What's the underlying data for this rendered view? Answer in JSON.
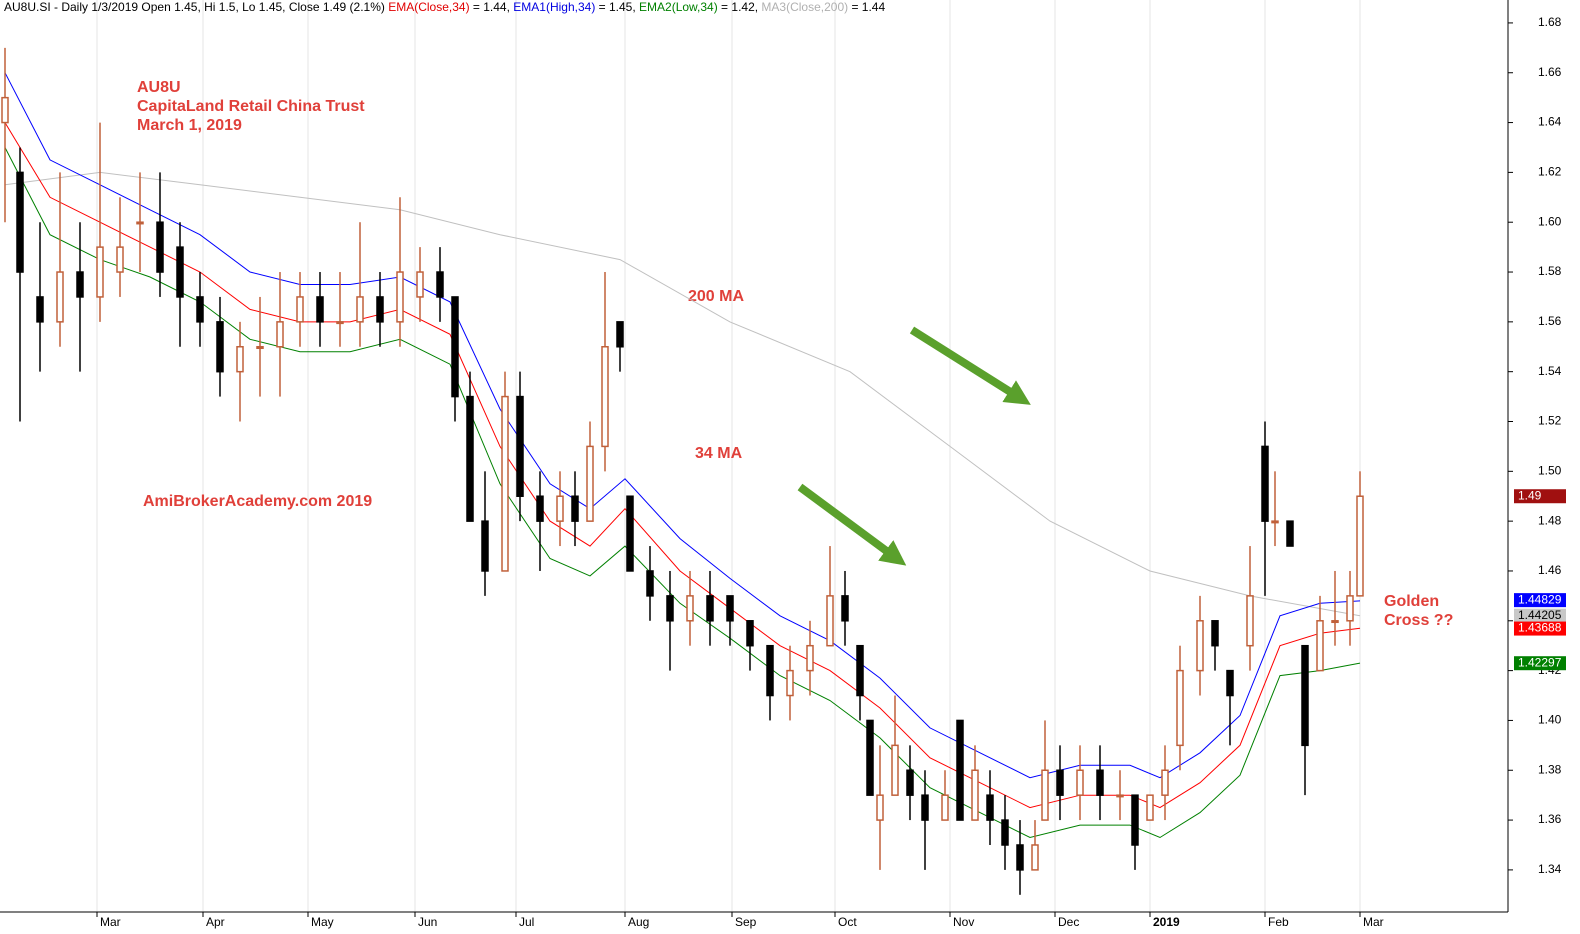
{
  "chart_data": {
    "type": "candlestick",
    "header": [
      {
        "text": "AU8U.SI - Daily 1/3/2019 Open 1.45, Hi 1.5, Lo 1.45, Close 1.49 (2.1%) ",
        "color": "#000000"
      },
      {
        "text": "EMA(Close,34)",
        "color": "#e00000"
      },
      {
        "text": " = 1.44, ",
        "color": "#000000"
      },
      {
        "text": "EMA1(High,34)",
        "color": "#0000e0"
      },
      {
        "text": " = 1.45, ",
        "color": "#000000"
      },
      {
        "text": "EMA2(Low,34)",
        "color": "#008000"
      },
      {
        "text": " = 1.42, ",
        "color": "#000000"
      },
      {
        "text": "MA3(Close,200)",
        "color": "#b0b0b0"
      },
      {
        "text": " = 1.44",
        "color": "#000000"
      }
    ],
    "annotations": [
      "AU8U",
      "CapitaLand Retail China Trust",
      "March 1, 2019",
      "200 MA",
      "34 MA",
      "AmiBrokerAcademy.com  2019",
      "Golden",
      "Cross ??"
    ],
    "up_color": "#c0603a",
    "down_color": "#000000",
    "xlim": [
      0,
      301.6
    ],
    "ylim": [
      1.3231,
      1.6892
    ],
    "yticks": [
      1.34,
      1.36,
      1.38,
      {
        "value": 1.4,
        "label": "1.40"
      },
      1.42,
      1.44,
      1.46,
      1.48,
      {
        "value": 1.5,
        "label": "1.50"
      },
      1.52,
      1.54,
      1.56,
      1.58,
      {
        "value": 1.6,
        "label": "1.60"
      },
      1.62,
      1.64,
      1.66,
      1.68
    ],
    "xticks": [
      {
        "value": 19.4,
        "label": "Mar"
      },
      {
        "value": 40.6,
        "label": "Apr"
      },
      {
        "value": 61.6,
        "label": "May"
      },
      {
        "value": 83,
        "label": "Jun"
      },
      {
        "value": 103.2,
        "label": "Jul"
      },
      {
        "value": 125,
        "label": "Aug"
      },
      {
        "value": 146.4,
        "label": "Sep"
      },
      {
        "value": 167,
        "label": "Oct"
      },
      {
        "value": 190,
        "label": "Nov"
      },
      {
        "value": 211,
        "label": "Dec"
      },
      {
        "value": 230,
        "label": "2019"
      },
      {
        "value": 253,
        "label": "Feb"
      },
      {
        "value": 272,
        "label": "Mar"
      }
    ],
    "grid": true,
    "candles": [
      {
        "x": 1,
        "o": 1.64,
        "h": 1.67,
        "l": 1.6,
        "c": 1.65
      },
      {
        "x": 4,
        "o": 1.62,
        "h": 1.63,
        "l": 1.52,
        "c": 1.58
      },
      {
        "x": 8,
        "o": 1.57,
        "h": 1.6,
        "l": 1.54,
        "c": 1.56
      },
      {
        "x": 12,
        "o": 1.56,
        "h": 1.62,
        "l": 1.55,
        "c": 1.58
      },
      {
        "x": 16,
        "o": 1.58,
        "h": 1.6,
        "l": 1.54,
        "c": 1.57
      },
      {
        "x": 20,
        "o": 1.57,
        "h": 1.64,
        "l": 1.56,
        "c": 1.59
      },
      {
        "x": 24,
        "o": 1.58,
        "h": 1.61,
        "l": 1.57,
        "c": 1.59
      },
      {
        "x": 28,
        "o": 1.6,
        "h": 1.62,
        "l": 1.58,
        "c": 1.6
      },
      {
        "x": 32,
        "o": 1.6,
        "h": 1.62,
        "l": 1.57,
        "c": 1.58
      },
      {
        "x": 36,
        "o": 1.59,
        "h": 1.6,
        "l": 1.55,
        "c": 1.57
      },
      {
        "x": 40,
        "o": 1.57,
        "h": 1.58,
        "l": 1.55,
        "c": 1.56
      },
      {
        "x": 44,
        "o": 1.56,
        "h": 1.57,
        "l": 1.53,
        "c": 1.54
      },
      {
        "x": 48,
        "o": 1.54,
        "h": 1.56,
        "l": 1.52,
        "c": 1.55
      },
      {
        "x": 52,
        "o": 1.55,
        "h": 1.57,
        "l": 1.53,
        "c": 1.55
      },
      {
        "x": 56,
        "o": 1.55,
        "h": 1.58,
        "l": 1.53,
        "c": 1.56
      },
      {
        "x": 60,
        "o": 1.56,
        "h": 1.58,
        "l": 1.55,
        "c": 1.57
      },
      {
        "x": 64,
        "o": 1.57,
        "h": 1.58,
        "l": 1.55,
        "c": 1.56
      },
      {
        "x": 68,
        "o": 1.56,
        "h": 1.58,
        "l": 1.55,
        "c": 1.56
      },
      {
        "x": 72,
        "o": 1.56,
        "h": 1.6,
        "l": 1.55,
        "c": 1.57
      },
      {
        "x": 76,
        "o": 1.57,
        "h": 1.58,
        "l": 1.55,
        "c": 1.56
      },
      {
        "x": 80,
        "o": 1.56,
        "h": 1.61,
        "l": 1.55,
        "c": 1.58
      },
      {
        "x": 84,
        "o": 1.57,
        "h": 1.59,
        "l": 1.56,
        "c": 1.58
      },
      {
        "x": 88,
        "o": 1.58,
        "h": 1.59,
        "l": 1.56,
        "c": 1.57
      },
      {
        "x": 91,
        "o": 1.57,
        "h": 1.57,
        "l": 1.52,
        "c": 1.53
      },
      {
        "x": 94,
        "o": 1.53,
        "h": 1.54,
        "l": 1.48,
        "c": 1.48
      },
      {
        "x": 97,
        "o": 1.48,
        "h": 1.5,
        "l": 1.45,
        "c": 1.46
      },
      {
        "x": 101,
        "o": 1.46,
        "h": 1.54,
        "l": 1.46,
        "c": 1.53
      },
      {
        "x": 104,
        "o": 1.53,
        "h": 1.54,
        "l": 1.48,
        "c": 1.49
      },
      {
        "x": 108,
        "o": 1.49,
        "h": 1.5,
        "l": 1.46,
        "c": 1.48
      },
      {
        "x": 112,
        "o": 1.48,
        "h": 1.5,
        "l": 1.47,
        "c": 1.49
      },
      {
        "x": 115,
        "o": 1.49,
        "h": 1.5,
        "l": 1.47,
        "c": 1.48
      },
      {
        "x": 118,
        "o": 1.48,
        "h": 1.52,
        "l": 1.48,
        "c": 1.51
      },
      {
        "x": 121,
        "o": 1.51,
        "h": 1.58,
        "l": 1.5,
        "c": 1.55
      },
      {
        "x": 124,
        "o": 1.56,
        "h": 1.56,
        "l": 1.54,
        "c": 1.55
      },
      {
        "x": 126,
        "o": 1.49,
        "h": 1.49,
        "l": 1.46,
        "c": 1.46
      },
      {
        "x": 130,
        "o": 1.46,
        "h": 1.47,
        "l": 1.44,
        "c": 1.45
      },
      {
        "x": 134,
        "o": 1.45,
        "h": 1.46,
        "l": 1.42,
        "c": 1.44
      },
      {
        "x": 138,
        "o": 1.44,
        "h": 1.46,
        "l": 1.43,
        "c": 1.45
      },
      {
        "x": 142,
        "o": 1.45,
        "h": 1.46,
        "l": 1.43,
        "c": 1.44
      },
      {
        "x": 146,
        "o": 1.45,
        "h": 1.45,
        "l": 1.43,
        "c": 1.44
      },
      {
        "x": 150,
        "o": 1.44,
        "h": 1.44,
        "l": 1.42,
        "c": 1.43
      },
      {
        "x": 154,
        "o": 1.43,
        "h": 1.43,
        "l": 1.4,
        "c": 1.41
      },
      {
        "x": 158,
        "o": 1.41,
        "h": 1.43,
        "l": 1.4,
        "c": 1.42
      },
      {
        "x": 162,
        "o": 1.42,
        "h": 1.44,
        "l": 1.41,
        "c": 1.43
      },
      {
        "x": 166,
        "o": 1.43,
        "h": 1.47,
        "l": 1.43,
        "c": 1.45
      },
      {
        "x": 169,
        "o": 1.45,
        "h": 1.46,
        "l": 1.43,
        "c": 1.44
      },
      {
        "x": 172,
        "o": 1.43,
        "h": 1.43,
        "l": 1.4,
        "c": 1.41
      },
      {
        "x": 174,
        "o": 1.4,
        "h": 1.4,
        "l": 1.37,
        "c": 1.37
      },
      {
        "x": 176,
        "o": 1.36,
        "h": 1.39,
        "l": 1.34,
        "c": 1.37
      },
      {
        "x": 179,
        "o": 1.37,
        "h": 1.41,
        "l": 1.37,
        "c": 1.39
      },
      {
        "x": 182,
        "o": 1.38,
        "h": 1.39,
        "l": 1.36,
        "c": 1.37
      },
      {
        "x": 185,
        "o": 1.37,
        "h": 1.38,
        "l": 1.34,
        "c": 1.36
      },
      {
        "x": 189,
        "o": 1.36,
        "h": 1.38,
        "l": 1.36,
        "c": 1.37
      },
      {
        "x": 192,
        "o": 1.4,
        "h": 1.4,
        "l": 1.36,
        "c": 1.36
      },
      {
        "x": 195,
        "o": 1.36,
        "h": 1.39,
        "l": 1.36,
        "c": 1.38
      },
      {
        "x": 198,
        "o": 1.37,
        "h": 1.38,
        "l": 1.35,
        "c": 1.36
      },
      {
        "x": 201,
        "o": 1.36,
        "h": 1.37,
        "l": 1.34,
        "c": 1.35
      },
      {
        "x": 204,
        "o": 1.35,
        "h": 1.36,
        "l": 1.33,
        "c": 1.34
      },
      {
        "x": 207,
        "o": 1.34,
        "h": 1.36,
        "l": 1.34,
        "c": 1.35
      },
      {
        "x": 209,
        "o": 1.36,
        "h": 1.4,
        "l": 1.36,
        "c": 1.38
      },
      {
        "x": 212,
        "o": 1.38,
        "h": 1.39,
        "l": 1.36,
        "c": 1.37
      },
      {
        "x": 216,
        "o": 1.37,
        "h": 1.39,
        "l": 1.36,
        "c": 1.38
      },
      {
        "x": 220,
        "o": 1.38,
        "h": 1.39,
        "l": 1.36,
        "c": 1.37
      },
      {
        "x": 224,
        "o": 1.37,
        "h": 1.38,
        "l": 1.36,
        "c": 1.37
      },
      {
        "x": 227,
        "o": 1.37,
        "h": 1.37,
        "l": 1.34,
        "c": 1.35
      },
      {
        "x": 230,
        "o": 1.36,
        "h": 1.37,
        "l": 1.36,
        "c": 1.37
      },
      {
        "x": 233,
        "o": 1.37,
        "h": 1.39,
        "l": 1.36,
        "c": 1.38
      },
      {
        "x": 236,
        "o": 1.39,
        "h": 1.43,
        "l": 1.38,
        "c": 1.42
      },
      {
        "x": 240,
        "o": 1.42,
        "h": 1.45,
        "l": 1.41,
        "c": 1.44
      },
      {
        "x": 243,
        "o": 1.44,
        "h": 1.44,
        "l": 1.42,
        "c": 1.43
      },
      {
        "x": 246,
        "o": 1.42,
        "h": 1.42,
        "l": 1.39,
        "c": 1.41
      },
      {
        "x": 250,
        "o": 1.43,
        "h": 1.47,
        "l": 1.42,
        "c": 1.45
      },
      {
        "x": 253,
        "o": 1.51,
        "h": 1.52,
        "l": 1.45,
        "c": 1.48
      },
      {
        "x": 255,
        "o": 1.48,
        "h": 1.5,
        "l": 1.47,
        "c": 1.48
      },
      {
        "x": 258,
        "o": 1.48,
        "h": 1.48,
        "l": 1.47,
        "c": 1.47
      },
      {
        "x": 261,
        "o": 1.43,
        "h": 1.43,
        "l": 1.37,
        "c": 1.39
      },
      {
        "x": 264,
        "o": 1.42,
        "h": 1.45,
        "l": 1.42,
        "c": 1.44
      },
      {
        "x": 267,
        "o": 1.44,
        "h": 1.46,
        "l": 1.43,
        "c": 1.44
      },
      {
        "x": 270,
        "o": 1.44,
        "h": 1.46,
        "l": 1.43,
        "c": 1.45
      },
      {
        "x": 272,
        "o": 1.45,
        "h": 1.5,
        "l": 1.45,
        "c": 1.49
      }
    ],
    "series": [
      {
        "name": "MA3(Close,200)",
        "color": "#c0c0c0",
        "x": [
          1,
          20,
          40,
          60,
          80,
          100,
          124,
          146,
          170,
          190,
          210,
          230,
          250,
          272
        ],
        "values": [
          1.615,
          1.62,
          1.615,
          1.61,
          1.605,
          1.595,
          1.585,
          1.56,
          1.54,
          1.51,
          1.48,
          1.46,
          1.45,
          1.442
        ]
      },
      {
        "name": "EMA1(High,34)",
        "color": "#0000ff",
        "x": [
          1,
          10,
          20,
          30,
          40,
          50,
          60,
          70,
          80,
          90,
          100,
          110,
          118,
          125,
          136,
          146,
          156,
          166,
          176,
          186,
          196,
          206,
          216,
          226,
          232,
          240,
          248,
          256,
          264,
          272
        ],
        "values": [
          1.66,
          1.625,
          1.615,
          1.605,
          1.595,
          1.58,
          1.575,
          1.575,
          1.578,
          1.568,
          1.525,
          1.495,
          1.485,
          1.497,
          1.473,
          1.457,
          1.442,
          1.432,
          1.417,
          1.397,
          1.387,
          1.377,
          1.382,
          1.382,
          1.377,
          1.387,
          1.402,
          1.442,
          1.447,
          1.448
        ]
      },
      {
        "name": "EMA(Close,34)",
        "color": "#ff0000",
        "x": [
          1,
          10,
          20,
          30,
          40,
          50,
          60,
          70,
          80,
          90,
          100,
          110,
          118,
          125,
          136,
          146,
          156,
          166,
          176,
          186,
          196,
          206,
          216,
          226,
          232,
          240,
          248,
          256,
          264,
          272
        ],
        "values": [
          1.64,
          1.61,
          1.6,
          1.59,
          1.58,
          1.565,
          1.56,
          1.56,
          1.565,
          1.555,
          1.51,
          1.48,
          1.47,
          1.485,
          1.46,
          1.445,
          1.43,
          1.42,
          1.405,
          1.385,
          1.375,
          1.365,
          1.37,
          1.37,
          1.365,
          1.375,
          1.39,
          1.43,
          1.435,
          1.437
        ]
      },
      {
        "name": "EMA2(Low,34)",
        "color": "#008000",
        "x": [
          1,
          10,
          20,
          30,
          40,
          50,
          60,
          70,
          80,
          90,
          100,
          110,
          118,
          125,
          136,
          146,
          156,
          166,
          176,
          186,
          196,
          206,
          216,
          226,
          232,
          240,
          248,
          256,
          264,
          272
        ],
        "values": [
          1.63,
          1.595,
          1.585,
          1.578,
          1.568,
          1.553,
          1.548,
          1.548,
          1.553,
          1.543,
          1.495,
          1.465,
          1.458,
          1.47,
          1.447,
          1.433,
          1.418,
          1.408,
          1.393,
          1.373,
          1.363,
          1.353,
          1.358,
          1.358,
          1.353,
          1.363,
          1.378,
          1.418,
          1.42,
          1.423
        ]
      }
    ],
    "last_labels": [
      {
        "value": 1.49,
        "label": "1.49",
        "color": "#a01010"
      },
      {
        "value": 1.44829,
        "label": "1.44829",
        "color": "#0000ff"
      },
      {
        "value": 1.44205,
        "label": "1.44205",
        "color": "#c8c8c8"
      },
      {
        "value": 1.43688,
        "label": "1.43688",
        "color": "#ff0000"
      },
      {
        "value": 1.42297,
        "label": "1.42297",
        "color": "#008000"
      }
    ]
  }
}
